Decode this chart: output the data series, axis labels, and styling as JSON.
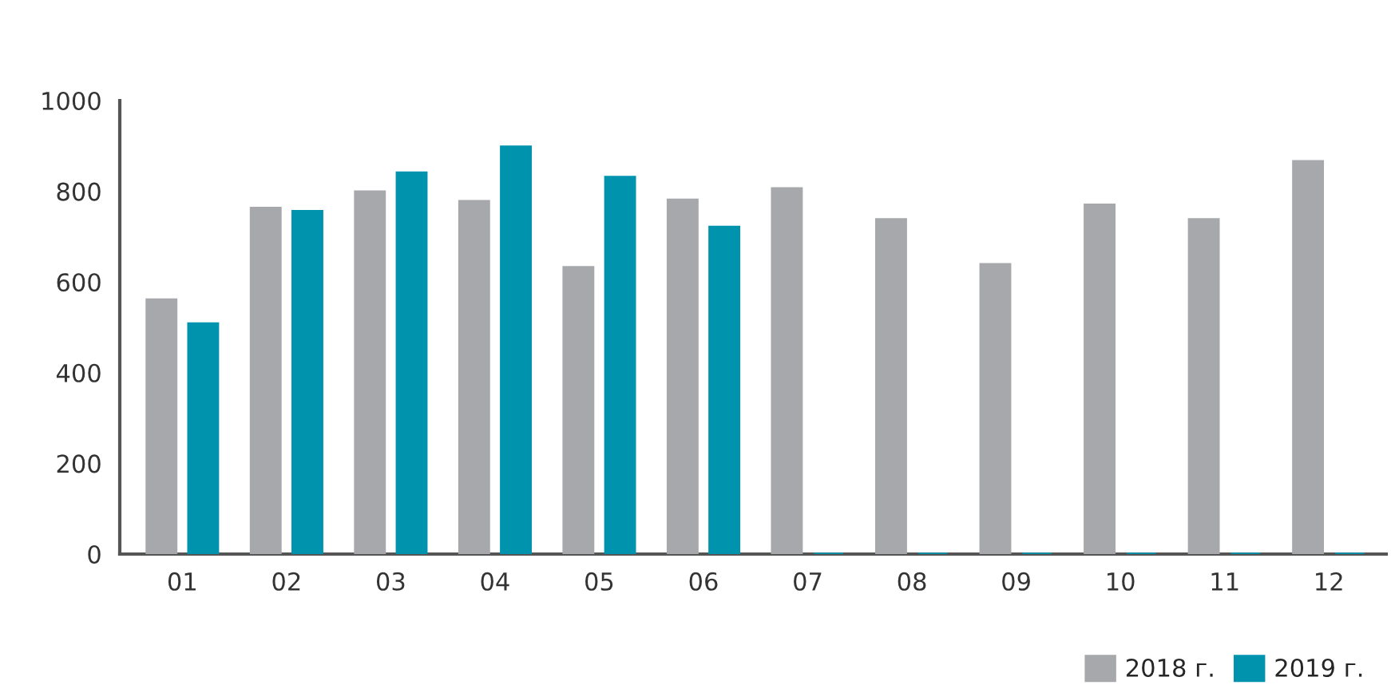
{
  "chart_data": {
    "type": "bar",
    "categories": [
      "01",
      "02",
      "03",
      "04",
      "05",
      "06",
      "07",
      "08",
      "09",
      "10",
      "11",
      "12"
    ],
    "series": [
      {
        "name": "2018 г.",
        "color": "#a7a8ab",
        "values": [
          561,
          763,
          799,
          778,
          632,
          781,
          806,
          738,
          639,
          770,
          738,
          866
        ]
      },
      {
        "name": "2019 г.",
        "color": "#0093ae",
        "values": [
          508,
          756,
          841,
          898,
          831,
          721,
          0,
          0,
          0,
          0,
          0,
          0
        ]
      }
    ],
    "ylim": [
      0,
      1000
    ],
    "yticks": [
      0,
      200,
      400,
      600,
      800,
      1000
    ],
    "grid": false,
    "legend": "bottom right"
  }
}
